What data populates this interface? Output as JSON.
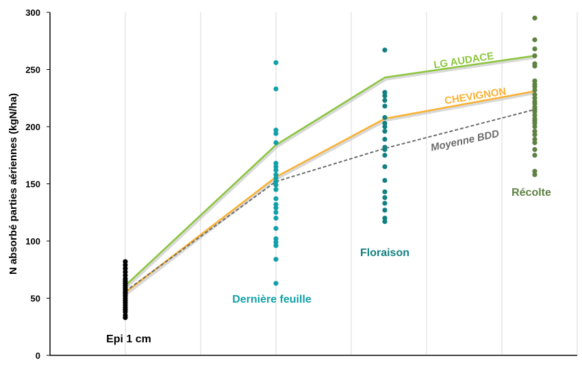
{
  "chart_data": {
    "type": "scatter",
    "ylabel": "N absorbé parties aériennes (kgN/ha)",
    "ylim": [
      0,
      300
    ],
    "yticks": [
      "0",
      "50",
      "100",
      "150",
      "200",
      "250",
      "300"
    ],
    "grid": "vertical",
    "stages": [
      {
        "name": "Epi 1 cm",
        "color": "#000000",
        "points": [
          33,
          35,
          38,
          40,
          42,
          44,
          46,
          48,
          50,
          52,
          54,
          55,
          57,
          59,
          61,
          63,
          65,
          67,
          70,
          73,
          76,
          79,
          82
        ]
      },
      {
        "name": "Dernière feuille",
        "color": "#12A0A8",
        "points": [
          63,
          84,
          96,
          99,
          102,
          111,
          120,
          125,
          129,
          132,
          137,
          145,
          149,
          152,
          155,
          158,
          162,
          165,
          168,
          186,
          194,
          197,
          233,
          256
        ]
      },
      {
        "name": "Floraison",
        "color": "#127F80",
        "points": [
          117,
          120,
          127,
          133,
          138,
          143,
          153,
          165,
          175,
          180,
          182,
          189,
          196,
          200,
          203,
          208,
          218,
          223,
          227,
          230,
          267
        ]
      },
      {
        "name": "Récolte",
        "color": "#5F8243",
        "points": [
          158,
          161,
          175,
          180,
          186,
          189,
          193,
          196,
          200,
          203,
          205,
          207,
          210,
          213,
          215,
          217,
          220,
          222,
          225,
          228,
          232,
          235,
          237,
          240,
          253,
          255,
          262,
          268,
          276,
          295
        ]
      }
    ],
    "series": [
      {
        "name": "LG AUDACE",
        "color": "#8DC63F",
        "values": [
          61,
          184,
          243,
          262
        ]
      },
      {
        "name": "CHEVIGNON",
        "color": "#F9B233",
        "values": [
          55,
          156,
          207,
          231
        ]
      },
      {
        "name": "Moyenne BDD",
        "color": "#6B6B6B",
        "values": [
          56,
          152,
          181,
          215
        ]
      }
    ]
  }
}
